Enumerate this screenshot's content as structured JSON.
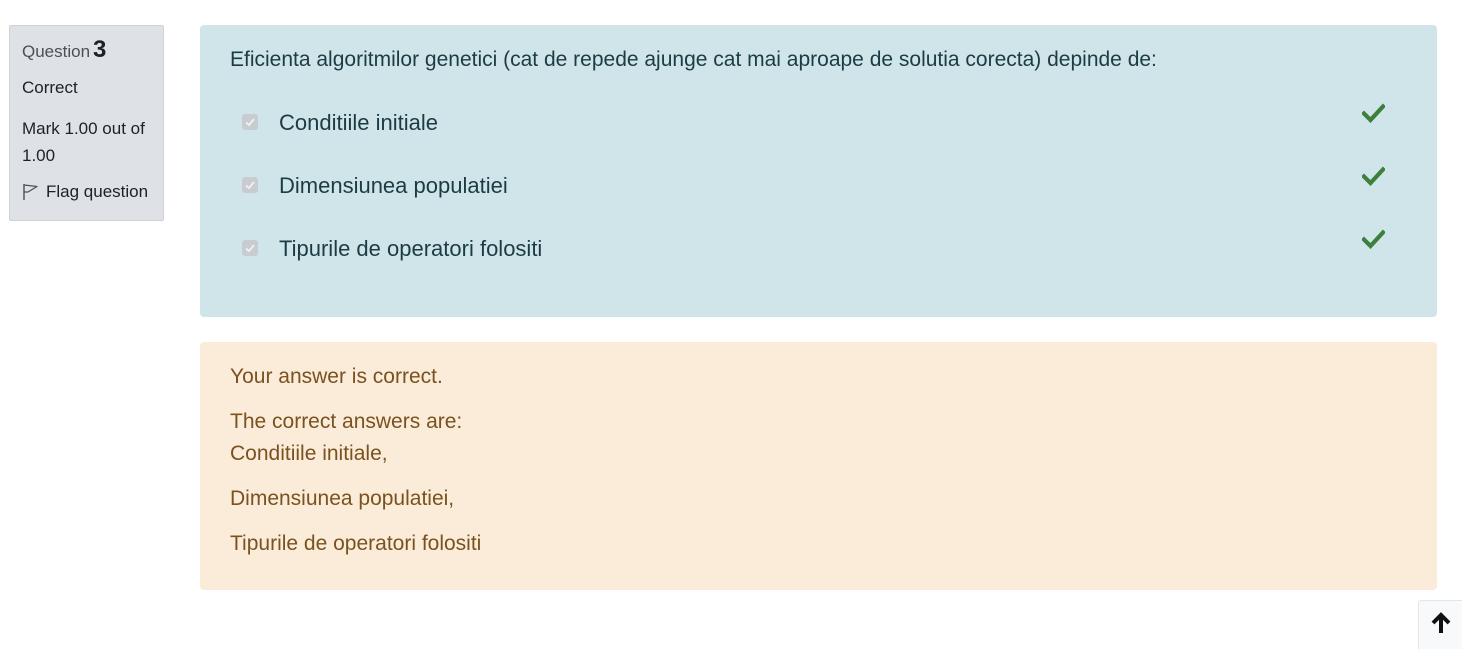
{
  "info": {
    "question_prefix": "Question",
    "question_number": "3",
    "state": "Correct",
    "grade": "Mark 1.00 out of 1.00",
    "flag_label": "Flag question"
  },
  "question": {
    "text": "Eficienta algoritmilor genetici (cat de repede ajunge cat mai aproape de solutia corecta) depinde de:",
    "answers": [
      {
        "label": "Conditiile initiale",
        "checked": true,
        "correct": true
      },
      {
        "label": "Dimensiunea populatiei",
        "checked": true,
        "correct": true
      },
      {
        "label": "Tipurile de operatori folositi",
        "checked": true,
        "correct": true
      }
    ]
  },
  "feedback": {
    "general": "Your answer is correct.",
    "right_answer_heading": "The correct answers are:",
    "right_answers": [
      "Conditiile initiale,",
      "Dimensiunea populatiei,",
      "Tipurile de operatori folositi"
    ]
  },
  "icons": {
    "tick": "check-icon",
    "flag": "flag-icon",
    "back_to_top": "arrow-up-icon"
  },
  "colors": {
    "formulation_bg": "#cfe5ea",
    "feedback_bg": "#fbecd9",
    "info_bg": "#dee2e6",
    "tick": "#3d7f3d"
  }
}
